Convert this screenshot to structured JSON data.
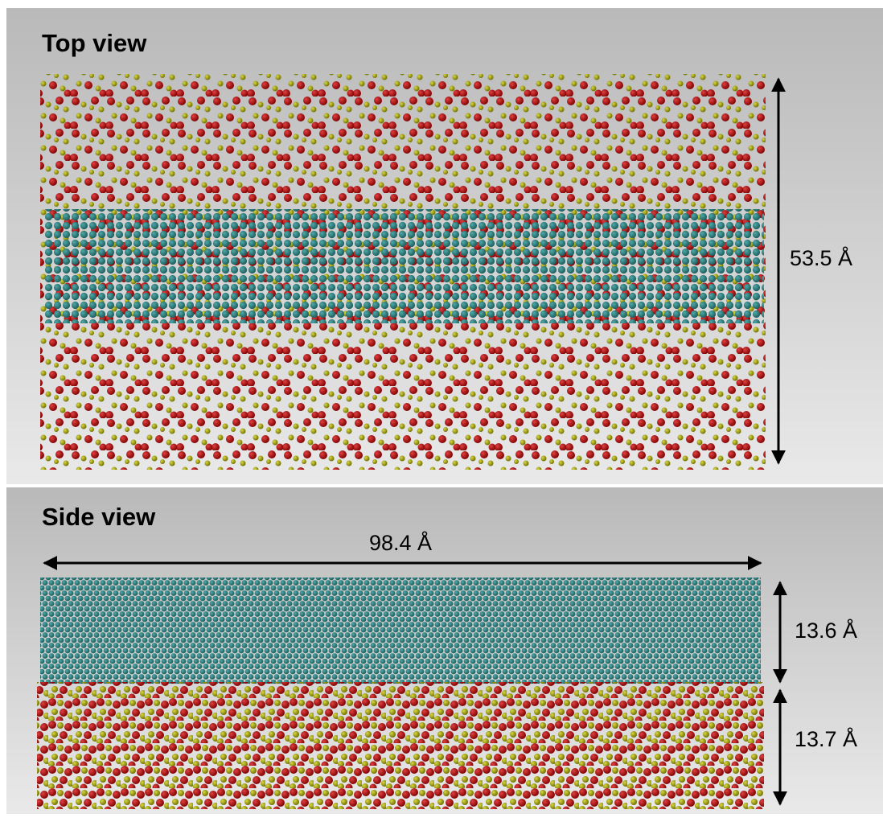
{
  "top_view": {
    "title": "Top view",
    "height_label": "53.5 Å"
  },
  "side_view": {
    "title": "Side view",
    "width_label": "98.4 Å",
    "upper_label": "13.6 Å",
    "lower_label": "13.7 Å"
  }
}
